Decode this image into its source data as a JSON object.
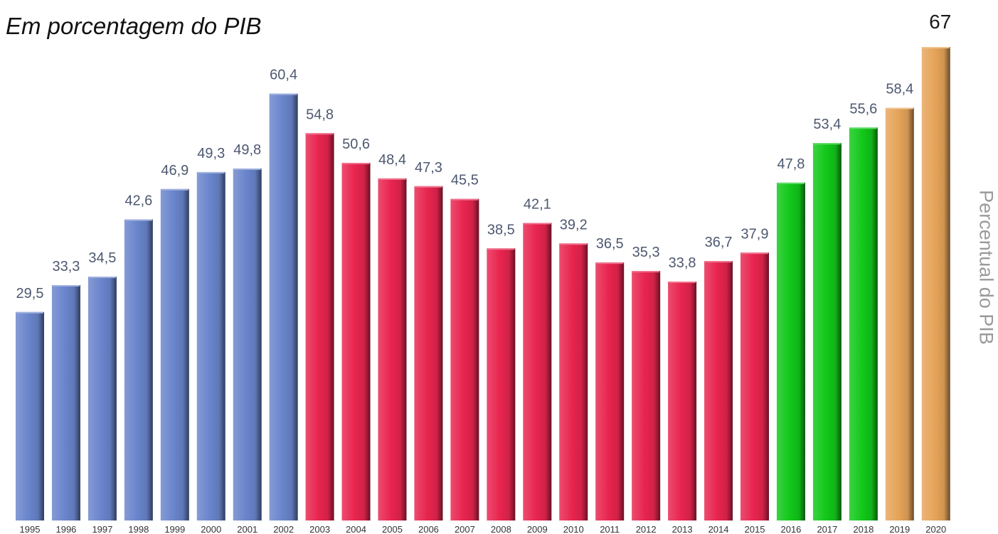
{
  "subtitle": "Em porcentagem do PIB",
  "chart_data": {
    "type": "bar",
    "title": "",
    "subtitle": "Em porcentagem do PIB",
    "ylabel": "Percentual do PIB",
    "xlabel": "",
    "categories": [
      "1995",
      "1996",
      "1997",
      "1998",
      "1999",
      "2000",
      "2001",
      "2002",
      "2003",
      "2004",
      "2005",
      "2006",
      "2007",
      "2008",
      "2009",
      "2010",
      "2011",
      "2012",
      "2013",
      "2014",
      "2015",
      "2016",
      "2017",
      "2018",
      "2019",
      "2020"
    ],
    "values": [
      29.5,
      33.3,
      34.5,
      42.6,
      46.9,
      49.3,
      49.8,
      60.4,
      54.8,
      50.6,
      48.4,
      47.3,
      45.5,
      38.5,
      42.1,
      39.2,
      36.5,
      35.3,
      33.8,
      36.7,
      37.9,
      47.8,
      53.4,
      55.6,
      58.4,
      67
    ],
    "value_labels": [
      "29,5",
      "33,3",
      "34,5",
      "42,6",
      "46,9",
      "49,3",
      "49,8",
      "60,4",
      "54,8",
      "50,6",
      "48,4",
      "47,3",
      "45,5",
      "38,5",
      "42,1",
      "39,2",
      "36,5",
      "35,3",
      "33,8",
      "36,7",
      "37,9",
      "47,8",
      "53,4",
      "55,6",
      "58,4",
      "67"
    ],
    "bar_colors": [
      "#6a85cc",
      "#6a85cc",
      "#6a85cc",
      "#6a85cc",
      "#6a85cc",
      "#6a85cc",
      "#6a85cc",
      "#6a85cc",
      "#e8254f",
      "#e8254f",
      "#e8254f",
      "#e8254f",
      "#e8254f",
      "#e8254f",
      "#e8254f",
      "#e8254f",
      "#e8254f",
      "#e8254f",
      "#e8254f",
      "#e8254f",
      "#e8254f",
      "#12c81a",
      "#12c81a",
      "#12c81a",
      "#e6a45a",
      "#e6a45a"
    ],
    "ylim": [
      0,
      67
    ],
    "grid": false,
    "legend": "none"
  }
}
